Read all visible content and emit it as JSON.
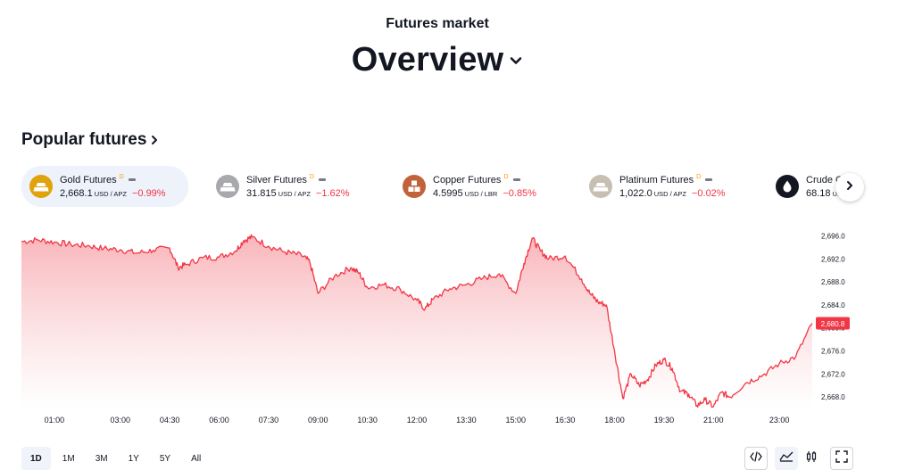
{
  "header": {
    "kicker": "Futures market",
    "title": "Overview"
  },
  "section": {
    "title": "Popular futures"
  },
  "cards": [
    {
      "name": "Gold Futures",
      "badge": "D",
      "price": "2,668.1",
      "unit": "USD / APZ",
      "change": "−0.99%",
      "logo_color": "#e0a30b",
      "active": true
    },
    {
      "name": "Silver Futures",
      "badge": "D",
      "price": "31.815",
      "unit": "USD / APZ",
      "change": "−1.62%",
      "logo_color": "#a7a9ad",
      "active": false
    },
    {
      "name": "Copper Futures",
      "badge": "D",
      "price": "4.5995",
      "unit": "USD / LBR",
      "change": "−0.85%",
      "logo_color": "#c0623a",
      "active": false
    },
    {
      "name": "Platinum Futures",
      "badge": "D",
      "price": "1,022.0",
      "unit": "USD / APZ",
      "change": "−0.02%",
      "logo_color": "#c7bfb1",
      "active": false
    },
    {
      "name": "Crude O",
      "badge": "",
      "price": "68.18",
      "unit": "US",
      "change": "",
      "logo_color": "#131722",
      "active": false
    }
  ],
  "icons": {
    "title_chevron": "chevron-down-icon",
    "section_chevron": "chevron-right-icon",
    "next": "chevron-right-icon"
  },
  "colors": {
    "line": "#f23645",
    "fill_top": "#f7a8ae",
    "fill_bottom": "#ffffff",
    "last_price_bg": "#f23645"
  },
  "ranges": [
    "1D",
    "1M",
    "3M",
    "1Y",
    "5Y",
    "All"
  ],
  "active_range": "1D",
  "tools": [
    "embed-code-icon",
    "area-chart-icon",
    "candles-icon",
    "fullscreen-icon"
  ],
  "chart_data": {
    "type": "area",
    "title": "",
    "xlabel": "",
    "ylabel": "",
    "x_ticks": [
      "01:00",
      "03:00",
      "04:30",
      "06:00",
      "07:30",
      "09:00",
      "10:30",
      "12:00",
      "13:30",
      "15:00",
      "16:30",
      "18:00",
      "19:30",
      "21:00",
      "23:00"
    ],
    "y_ticks": [
      "2,696.0",
      "2,692.0",
      "2,688.0",
      "2,684.0",
      "2,680.0",
      "2,676.0",
      "2,672.0",
      "2,668.0"
    ],
    "ylim": [
      2666.0,
      2697.0
    ],
    "last_price": "2,680.8",
    "grid": false,
    "series": [
      {
        "x": [
          "00:00",
          "00:30",
          "01:00",
          "01:30",
          "02:00",
          "02:30",
          "03:00",
          "03:30",
          "04:00",
          "04:30",
          "04:45",
          "05:00",
          "05:30",
          "06:00",
          "06:30",
          "06:45",
          "07:00",
          "07:30",
          "08:00",
          "08:30",
          "08:45",
          "09:00",
          "09:30",
          "10:00",
          "10:15",
          "10:30",
          "11:00",
          "11:30",
          "12:00",
          "12:15",
          "12:30",
          "13:00",
          "13:30",
          "14:00",
          "14:30",
          "15:00",
          "15:15",
          "15:30",
          "15:45",
          "16:00",
          "16:30",
          "17:00",
          "17:15",
          "17:30",
          "17:45",
          "18:00",
          "18:15",
          "18:30",
          "18:45",
          "19:00",
          "19:15",
          "19:30",
          "19:45",
          "20:00",
          "20:15",
          "20:30",
          "20:45",
          "21:00",
          "21:15",
          "21:30",
          "22:00",
          "22:30",
          "23:00",
          "23:30",
          "24:00"
        ],
        "values": [
          2695.0,
          2695.3,
          2694.9,
          2694.5,
          2694.3,
          2693.8,
          2693.6,
          2693.0,
          2693.5,
          2693.9,
          2690.5,
          2691.0,
          2692.2,
          2692.3,
          2693.4,
          2695.2,
          2695.8,
          2694.2,
          2693.2,
          2692.6,
          2691.5,
          2686.0,
          2689.0,
          2690.5,
          2689.5,
          2687.0,
          2687.5,
          2686.7,
          2684.8,
          2683.3,
          2685.0,
          2686.8,
          2687.5,
          2688.6,
          2689.4,
          2686.0,
          2691.2,
          2695.6,
          2693.4,
          2692.0,
          2692.5,
          2688.5,
          2686.0,
          2684.5,
          2684.0,
          2676.0,
          2667.8,
          2672.0,
          2670.0,
          2671.0,
          2673.5,
          2674.5,
          2673.0,
          2669.0,
          2668.5,
          2666.5,
          2667.5,
          2666.3,
          2668.8,
          2668.0,
          2670.5,
          2671.8,
          2673.8,
          2675.0,
          2680.8
        ]
      }
    ]
  }
}
